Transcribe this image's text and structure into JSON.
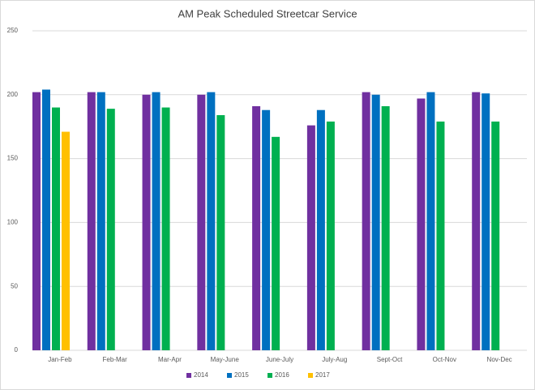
{
  "chart_data": {
    "type": "bar",
    "title": "AM Peak Scheduled Streetcar Service",
    "categories": [
      "Jan-Feb",
      "Feb-Mar",
      "Mar-Apr",
      "May-June",
      "June-July",
      "July-Aug",
      "Sept-Oct",
      "Oct-Nov",
      "Nov-Dec"
    ],
    "series": [
      {
        "name": "2014",
        "color": "#7030a0",
        "values": [
          202,
          202,
          200,
          200,
          191,
          176,
          202,
          197,
          202
        ]
      },
      {
        "name": "2015",
        "color": "#0070c0",
        "values": [
          204,
          202,
          202,
          202,
          188,
          188,
          200,
          202,
          201
        ]
      },
      {
        "name": "2016",
        "color": "#00b050",
        "values": [
          190,
          189,
          190,
          184,
          167,
          179,
          191,
          179,
          179
        ]
      },
      {
        "name": "2017",
        "color": "#ffc000",
        "values": [
          171,
          null,
          null,
          null,
          null,
          null,
          null,
          null,
          null
        ]
      }
    ],
    "ylim": [
      0,
      250
    ],
    "yticks": [
      0,
      50,
      100,
      150,
      200,
      250
    ],
    "grid": true,
    "legend": "bottom"
  }
}
